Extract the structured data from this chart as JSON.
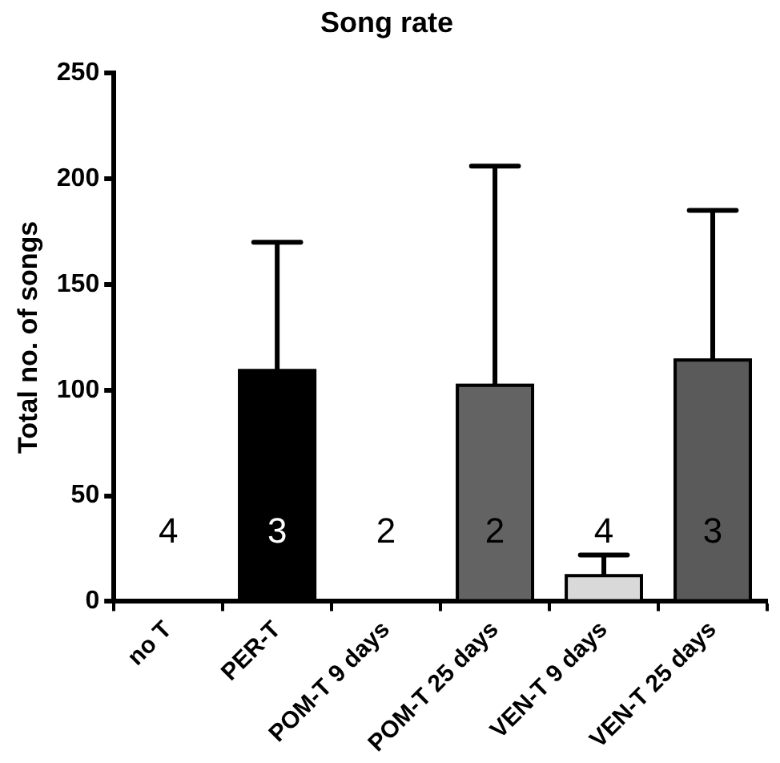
{
  "chart_data": {
    "type": "bar",
    "title": "Song rate",
    "ylabel": "Total no. of songs",
    "categories": [
      "no T",
      "PER-T",
      "POM-T 9 days",
      "POM-T 25 days",
      "VEN-T 9 days",
      "VEN-T 25 days"
    ],
    "values": [
      0,
      110,
      0,
      103,
      13,
      115
    ],
    "colors": [
      "#ffffff",
      "#000000",
      "#ffffff",
      "#636363",
      "#d9d9d9",
      "#5a5a5a"
    ],
    "errors": [
      null,
      [
        110,
        170
      ],
      null,
      [
        103,
        206
      ],
      [
        13,
        22
      ],
      [
        115,
        185
      ]
    ],
    "ylim": [
      0,
      250
    ],
    "yticks": [
      0,
      50,
      100,
      150,
      200,
      250
    ],
    "annotations": [
      "4",
      "3",
      "2",
      "2",
      "4",
      "3"
    ]
  }
}
